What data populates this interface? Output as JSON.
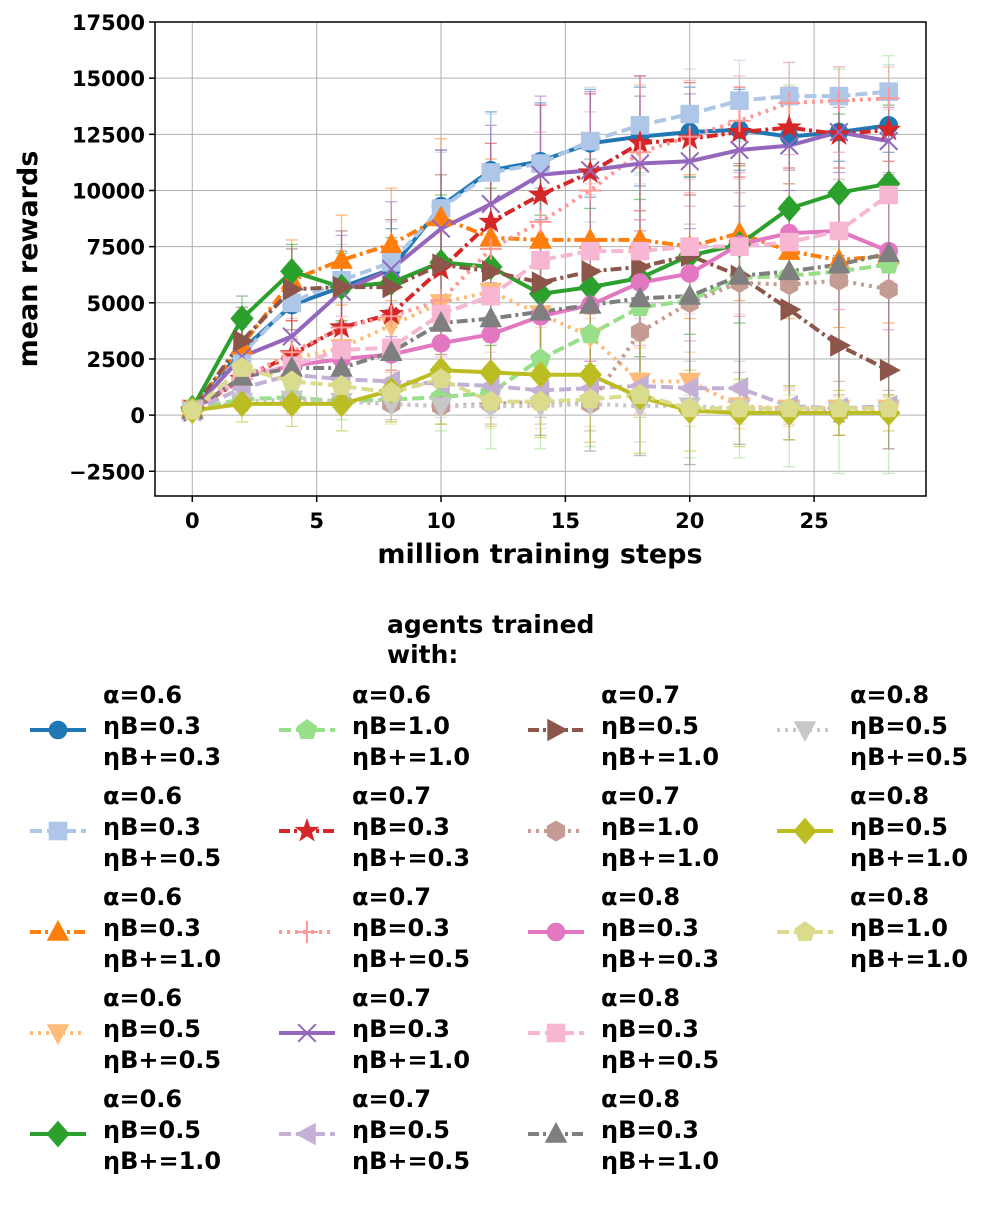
{
  "chart_data": {
    "type": "line",
    "xlabel": "million training steps",
    "ylabel": "mean rewards",
    "xlim": [
      -1.5,
      29.5
    ],
    "ylim": [
      -3600,
      17500
    ],
    "x_ticks": [
      0,
      5,
      10,
      15,
      20,
      25
    ],
    "y_ticks": [
      -2500,
      0,
      2500,
      5000,
      7500,
      10000,
      12500,
      15000,
      17500
    ],
    "x_tick_labels": [
      "0",
      "5",
      "10",
      "15",
      "20",
      "25"
    ],
    "y_tick_labels": [
      "−2500",
      "0",
      "2500",
      "5000",
      "7500",
      "10000",
      "12500",
      "15000",
      "17500"
    ],
    "grid": true,
    "x": [
      0,
      2,
      4,
      6,
      8,
      10,
      12,
      14,
      16,
      18,
      20,
      22,
      24,
      26,
      28
    ],
    "legend_title": "agents trained with:",
    "series": [
      {
        "alpha": "α=0.6",
        "eta_b": "ηB=0.3",
        "eta_bp": "ηB+=0.3",
        "color": "#1f77b4",
        "marker": "circle",
        "dash": "solid",
        "values": [
          200,
          2900,
          4900,
          5700,
          6500,
          9300,
          10900,
          11300,
          12100,
          12400,
          12600,
          12700,
          12400,
          12600,
          12900
        ],
        "err": [
          200,
          1200,
          1500,
          1600,
          1800,
          2500,
          2600,
          2600,
          2400,
          2200,
          2000,
          1800,
          1500,
          1300,
          1200
        ]
      },
      {
        "alpha": "α=0.6",
        "eta_b": "ηB=0.3",
        "eta_bp": "ηB+=0.5",
        "color": "#aec7e8",
        "marker": "square",
        "dash": "dashed",
        "values": [
          200,
          2700,
          5000,
          6000,
          6800,
          9200,
          10800,
          11200,
          12200,
          12900,
          13400,
          14000,
          14200,
          14200,
          14400
        ],
        "err": [
          200,
          1200,
          1500,
          1600,
          1800,
          2500,
          2600,
          2600,
          2400,
          2200,
          2000,
          1800,
          1500,
          1300,
          1200
        ]
      },
      {
        "alpha": "α=0.6",
        "eta_b": "ηB=0.3",
        "eta_bp": "ηB+=1.0",
        "color": "#ff7f0e",
        "marker": "triangle-up",
        "dash": "dashdot",
        "values": [
          300,
          3100,
          6000,
          6900,
          7600,
          8800,
          7900,
          7800,
          7800,
          7800,
          7500,
          8100,
          7300,
          6900,
          7100
        ],
        "err": [
          200,
          1500,
          1800,
          2000,
          2500,
          3500,
          3500,
          3300,
          3300,
          3200,
          3200,
          3000,
          3000,
          3000,
          3000
        ]
      },
      {
        "alpha": "α=0.6",
        "eta_b": "ηB=0.5",
        "eta_bp": "ηB+=0.5",
        "color": "#ffbb78",
        "marker": "triangle-down",
        "dash": "dotted",
        "values": [
          300,
          1800,
          2500,
          3000,
          4000,
          5000,
          5500,
          4500,
          3500,
          1500,
          1500,
          400,
          300,
          300,
          300
        ],
        "err": [
          200,
          800,
          1000,
          1200,
          1500,
          2000,
          2000,
          2000,
          1800,
          1500,
          1300,
          1000,
          800,
          600,
          500
        ]
      },
      {
        "alpha": "α=0.6",
        "eta_b": "ηB=0.5",
        "eta_bp": "ηB+=1.0",
        "color": "#2ca02c",
        "marker": "diamond",
        "dash": "solid",
        "values": [
          300,
          4300,
          6400,
          5700,
          5900,
          6800,
          6600,
          5400,
          5700,
          6100,
          7100,
          7600,
          9200,
          9900,
          10300
        ],
        "err": [
          200,
          1000,
          1200,
          1500,
          2000,
          3000,
          3500,
          3500,
          3500,
          3500,
          3500,
          3500,
          3500,
          3500,
          3500
        ]
      },
      {
        "alpha": "α=0.6",
        "eta_b": "ηB=1.0",
        "eta_bp": "ηB+=1.0",
        "color": "#98df8a",
        "marker": "pentagon",
        "dash": "dashed",
        "values": [
          300,
          700,
          800,
          600,
          700,
          800,
          1000,
          2500,
          3600,
          4800,
          5100,
          6100,
          6200,
          6400,
          6700
        ],
        "err": [
          200,
          400,
          500,
          800,
          1000,
          1500,
          2500,
          4000,
          5000,
          6000,
          7000,
          8000,
          8500,
          9000,
          9300
        ]
      },
      {
        "alpha": "α=0.7",
        "eta_b": "ηB=0.3",
        "eta_bp": "ηB+=0.3",
        "color": "#d62728",
        "marker": "star",
        "dash": "dashdot",
        "values": [
          200,
          1600,
          2700,
          3900,
          4500,
          6500,
          8600,
          9800,
          10800,
          12100,
          12300,
          12600,
          12800,
          12500,
          12700
        ],
        "err": [
          200,
          1000,
          1500,
          2000,
          2500,
          3000,
          3500,
          4000,
          3500,
          3000,
          2500,
          2000,
          1800,
          1500,
          1400
        ]
      },
      {
        "alpha": "α=0.7",
        "eta_b": "ηB=0.3",
        "eta_bp": "ηB+=0.5",
        "color": "#ff9896",
        "marker": "plus",
        "dash": "dotted",
        "values": [
          200,
          1600,
          2800,
          3900,
          4400,
          5100,
          7400,
          8600,
          10000,
          11700,
          12400,
          13100,
          13900,
          14000,
          14100
        ],
        "err": [
          200,
          1000,
          1500,
          2000,
          2500,
          3000,
          3500,
          4000,
          3500,
          3000,
          2500,
          2000,
          1800,
          1500,
          1400
        ]
      },
      {
        "alpha": "α=0.7",
        "eta_b": "ηB=0.3",
        "eta_bp": "ηB+=1.0",
        "color": "#9467bd",
        "marker": "x",
        "dash": "solid",
        "values": [
          200,
          2600,
          3500,
          5500,
          6500,
          8300,
          9400,
          10700,
          10900,
          11200,
          11300,
          11800,
          12000,
          12600,
          12200
        ],
        "err": [
          200,
          1500,
          2000,
          2500,
          3000,
          3500,
          3500,
          3500,
          3500,
          3000,
          3000,
          2500,
          2000,
          1800,
          1500
        ]
      },
      {
        "alpha": "α=0.7",
        "eta_b": "ηB=0.5",
        "eta_bp": "ηB+=0.5",
        "color": "#c5b0d5",
        "marker": "triangle-left",
        "dash": "dashed",
        "values": [
          200,
          1200,
          1800,
          1600,
          1500,
          1400,
          1300,
          1100,
          1200,
          1300,
          1200,
          1200,
          400,
          300,
          400
        ],
        "err": [
          200,
          800,
          1000,
          1200,
          1200,
          1200,
          1200,
          1200,
          1200,
          1200,
          1200,
          1200,
          800,
          600,
          500
        ]
      },
      {
        "alpha": "α=0.7",
        "eta_b": "ηB=0.5",
        "eta_bp": "ηB+=1.0",
        "color": "#8c564b",
        "marker": "triangle-right",
        "dash": "dashdot",
        "values": [
          200,
          3300,
          5600,
          5700,
          5700,
          6700,
          6400,
          5900,
          6400,
          6600,
          7100,
          6200,
          4700,
          3100,
          2000
        ],
        "err": [
          200,
          1500,
          1800,
          2500,
          3000,
          4000,
          4500,
          5000,
          5500,
          5500,
          5500,
          5000,
          4500,
          4000,
          3500
        ]
      },
      {
        "alpha": "α=0.7",
        "eta_b": "ηB=1.0",
        "eta_bp": "ηB+=1.0",
        "color": "#c49c94",
        "marker": "hexagon",
        "dash": "dotted",
        "values": [
          200,
          600,
          600,
          600,
          500,
          400,
          500,
          600,
          500,
          3700,
          5000,
          5900,
          5800,
          6000,
          5600
        ],
        "err": [
          200,
          400,
          500,
          600,
          700,
          800,
          900,
          1000,
          1200,
          2500,
          3500,
          4000,
          4500,
          4500,
          4500
        ]
      },
      {
        "alpha": "α=0.8",
        "eta_b": "ηB=0.3",
        "eta_bp": "ηB+=0.3",
        "color": "#e377c2",
        "marker": "circle",
        "dash": "solid",
        "values": [
          200,
          1700,
          2200,
          2500,
          2700,
          3200,
          3600,
          4400,
          4900,
          5900,
          6300,
          7600,
          8100,
          8200,
          7300
        ],
        "err": [
          200,
          1000,
          1200,
          1400,
          1600,
          1800,
          2000,
          2200,
          2500,
          2800,
          3000,
          3200,
          3500,
          3500,
          3500
        ]
      },
      {
        "alpha": "α=0.8",
        "eta_b": "ηB=0.3",
        "eta_bp": "ηB+=0.5",
        "color": "#f7b6d2",
        "marker": "square",
        "dash": "dashed",
        "values": [
          200,
          1700,
          2200,
          2900,
          3000,
          4500,
          5300,
          6900,
          7300,
          7300,
          7500,
          7500,
          7700,
          8200,
          9800
        ],
        "err": [
          200,
          1000,
          1200,
          1500,
          1800,
          2000,
          2500,
          3000,
          3000,
          3000,
          3000,
          3000,
          3200,
          3500,
          3800
        ]
      },
      {
        "alpha": "α=0.8",
        "eta_b": "ηB=0.3",
        "eta_bp": "ηB+=1.0",
        "color": "#7f7f7f",
        "marker": "triangle-up",
        "dash": "dashdot",
        "values": [
          200,
          1700,
          2100,
          2100,
          2800,
          4100,
          4300,
          4600,
          4900,
          5200,
          5300,
          6200,
          6400,
          6700,
          7200
        ],
        "err": [
          200,
          1000,
          1200,
          1500,
          1800,
          2500,
          3500,
          5500,
          6500,
          7000,
          7500,
          7500,
          7500,
          7000,
          7000
        ]
      },
      {
        "alpha": "α=0.8",
        "eta_b": "ηB=0.5",
        "eta_bp": "ηB+=0.5",
        "color": "#c7c7c7",
        "marker": "triangle-down",
        "dash": "dotted",
        "values": [
          200,
          600,
          700,
          600,
          500,
          400,
          400,
          400,
          500,
          400,
          400,
          300,
          200,
          200,
          200
        ],
        "err": [
          200,
          400,
          500,
          500,
          500,
          500,
          500,
          500,
          500,
          500,
          500,
          400,
          300,
          300,
          300
        ]
      },
      {
        "alpha": "α=0.8",
        "eta_b": "ηB=0.5",
        "eta_bp": "ηB+=1.0",
        "color": "#bcbd22",
        "marker": "diamond",
        "dash": "solid",
        "values": [
          200,
          500,
          500,
          500,
          1100,
          2000,
          1900,
          1800,
          1800,
          800,
          200,
          100,
          100,
          100,
          100
        ],
        "err": [
          200,
          800,
          1000,
          1200,
          1400,
          2400,
          2400,
          2800,
          3000,
          2500,
          1800,
          1500,
          1200,
          1000,
          800
        ]
      },
      {
        "alpha": "α=0.8",
        "eta_b": "ηB=1.0",
        "eta_bp": "ηB+=1.0",
        "color": "#dbdb8d",
        "marker": "pentagon",
        "dash": "dashed",
        "values": [
          200,
          2100,
          1500,
          1300,
          1000,
          1600,
          600,
          600,
          700,
          900,
          300,
          300,
          300,
          300,
          300
        ],
        "err": [
          200,
          1000,
          1200,
          1300,
          1400,
          1600,
          1200,
          1200,
          1200,
          1000,
          800,
          700,
          600,
          500,
          500
        ]
      }
    ]
  }
}
